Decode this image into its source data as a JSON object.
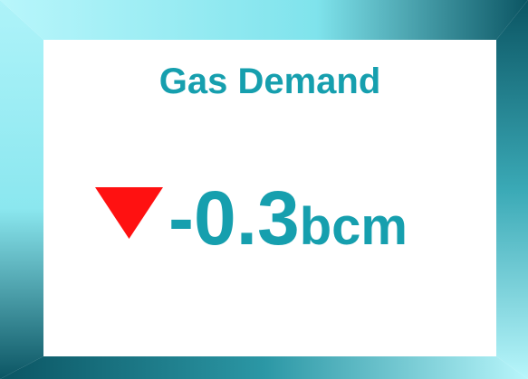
{
  "card": {
    "title": "Gas Demand",
    "value": -0.3,
    "unit": "bcm"
  }
}
